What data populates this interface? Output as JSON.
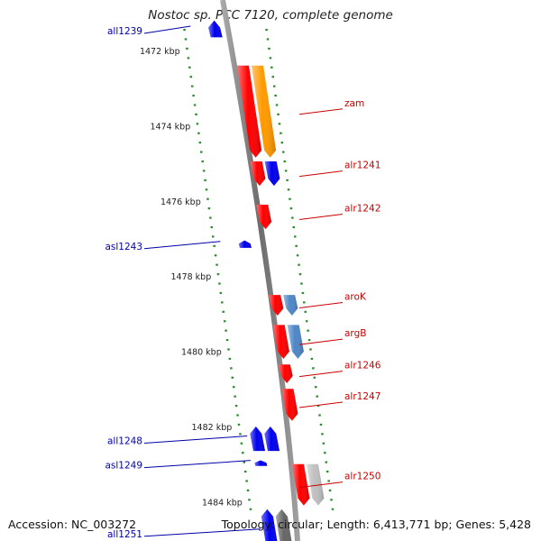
{
  "title": "Nostoc sp. PCC 7120, complete genome",
  "footer": {
    "accession": "Accession: NC_003272",
    "topology": "Topology: circular; Length: 6,413,771 bp; Genes: 5,428"
  },
  "colors": {
    "backbone": "#7f7f7f",
    "tick": "#2e8b2e",
    "forward_label": "#cc0000",
    "reverse_label": "#0000aa",
    "gene_red": "#ff0000",
    "gene_blue": "#0000ee",
    "gene_orange": "#ff9900",
    "gene_steelblue": "#4f86c6",
    "gene_gray": "#bfbfbf",
    "gene_darkgray": "#666666"
  },
  "axis": {
    "kbp_start": 1471.2,
    "kbp_end": 1485.4,
    "tick_labels": [
      {
        "kbp": 1472,
        "label": "1472 kbp"
      },
      {
        "kbp": 1474,
        "label": "1474 kbp"
      },
      {
        "kbp": 1476,
        "label": "1476 kbp"
      },
      {
        "kbp": 1478,
        "label": "1478 kbp"
      },
      {
        "kbp": 1480,
        "label": "1480 kbp"
      },
      {
        "kbp": 1482,
        "label": "1482 kbp"
      },
      {
        "kbp": 1484,
        "label": "1484 kbp"
      }
    ]
  },
  "genes": [
    {
      "name": "all1239",
      "strand": "-",
      "start": 1471.2,
      "end": 1471.65,
      "lane": 0,
      "color": "gene_blue"
    },
    {
      "name": "",
      "strand": "+",
      "start": 1472.4,
      "end": 1474.85,
      "lane": 0,
      "color": "gene_red"
    },
    {
      "name": "zam",
      "strand": "+",
      "start": 1472.4,
      "end": 1474.85,
      "lane": 1,
      "color": "gene_orange"
    },
    {
      "name": "",
      "strand": "+",
      "start": 1474.95,
      "end": 1475.6,
      "lane": 0,
      "color": "gene_red"
    },
    {
      "name": "alr1241",
      "strand": "+",
      "start": 1474.95,
      "end": 1475.6,
      "lane": 1,
      "color": "gene_blue"
    },
    {
      "name": "alr1242",
      "strand": "+",
      "start": 1476.1,
      "end": 1476.75,
      "lane": 0,
      "color": "gene_red"
    },
    {
      "name": "asl1243",
      "strand": "-",
      "start": 1477.05,
      "end": 1477.25,
      "lane": 0,
      "color": "gene_blue"
    },
    {
      "name": "",
      "strand": "+",
      "start": 1478.5,
      "end": 1479.05,
      "lane": 0,
      "color": "gene_red"
    },
    {
      "name": "aroK",
      "strand": "+",
      "start": 1478.5,
      "end": 1479.05,
      "lane": 1,
      "color": "gene_steelblue"
    },
    {
      "name": "",
      "strand": "+",
      "start": 1479.3,
      "end": 1480.2,
      "lane": 0,
      "color": "gene_red"
    },
    {
      "name": "argB",
      "strand": "+",
      "start": 1479.3,
      "end": 1480.2,
      "lane": 1,
      "color": "gene_steelblue"
    },
    {
      "name": "alr1246",
      "strand": "+",
      "start": 1480.35,
      "end": 1480.85,
      "lane": 0,
      "color": "gene_red"
    },
    {
      "name": "alr1247",
      "strand": "+",
      "start": 1481.0,
      "end": 1481.85,
      "lane": 0,
      "color": "gene_red"
    },
    {
      "name": "all1248",
      "strand": "-",
      "start": 1482.0,
      "end": 1482.65,
      "lane": 0,
      "color": "gene_blue"
    },
    {
      "name": "",
      "strand": "-",
      "start": 1482.0,
      "end": 1482.65,
      "lane": 1,
      "color": "gene_blue"
    },
    {
      "name": "asl1249",
      "strand": "-",
      "start": 1482.9,
      "end": 1483.05,
      "lane": 1,
      "color": "gene_blue"
    },
    {
      "name": "",
      "strand": "+",
      "start": 1483.0,
      "end": 1484.1,
      "lane": 0,
      "color": "gene_red"
    },
    {
      "name": "alr1250",
      "strand": "+",
      "start": 1483.0,
      "end": 1484.1,
      "lane": 1,
      "color": "gene_gray"
    },
    {
      "name": "",
      "strand": "-",
      "start": 1484.2,
      "end": 1485.4,
      "lane": 0,
      "color": "gene_darkgray"
    },
    {
      "name": "all1251",
      "strand": "-",
      "start": 1484.2,
      "end": 1485.4,
      "lane": 1,
      "color": "gene_blue"
    }
  ]
}
